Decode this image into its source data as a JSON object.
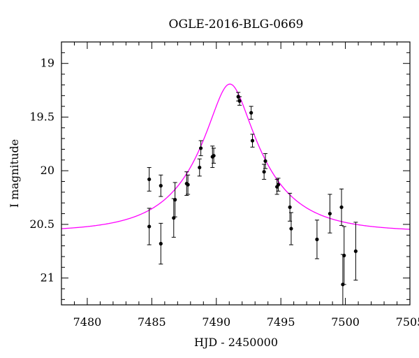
{
  "chart_data": {
    "type": "scatter",
    "title": "OGLE-2016-BLG-0669",
    "xlabel": "HJD - 2450000",
    "ylabel": "I magnitude",
    "xlim": [
      7478,
      7505
    ],
    "ylim": [
      21.25,
      18.8
    ],
    "y_inverted": true,
    "x_ticks": [
      7480,
      7485,
      7490,
      7495,
      7500,
      7505
    ],
    "y_ticks": [
      19,
      19.5,
      20,
      20.5,
      21
    ],
    "x_tick_labels": [
      "7480",
      "7485",
      "7490",
      "7495",
      "7500",
      "7505"
    ],
    "y_tick_labels": [
      "19",
      "19.5",
      "20",
      "20.5",
      "21"
    ],
    "grid": false,
    "colors": {
      "model": "#ff00ff",
      "points": "#000000"
    },
    "series": [
      {
        "type": "points_with_errors",
        "points": [
          {
            "x": 7484.8,
            "y": 20.08,
            "err": 0.11
          },
          {
            "x": 7484.8,
            "y": 20.52,
            "err": 0.17
          },
          {
            "x": 7485.7,
            "y": 20.14,
            "err": 0.1
          },
          {
            "x": 7485.7,
            "y": 20.68,
            "err": 0.19
          },
          {
            "x": 7486.7,
            "y": 20.44,
            "err": 0.18
          },
          {
            "x": 7486.8,
            "y": 20.27,
            "err": 0.16
          },
          {
            "x": 7487.7,
            "y": 20.12,
            "err": 0.11
          },
          {
            "x": 7487.8,
            "y": 20.13,
            "err": 0.09
          },
          {
            "x": 7488.7,
            "y": 19.97,
            "err": 0.08
          },
          {
            "x": 7488.8,
            "y": 19.79,
            "err": 0.07
          },
          {
            "x": 7489.7,
            "y": 19.87,
            "err": 0.1
          },
          {
            "x": 7489.8,
            "y": 19.86,
            "err": 0.07
          },
          {
            "x": 7491.7,
            "y": 19.31,
            "err": 0.04
          },
          {
            "x": 7491.8,
            "y": 19.35,
            "err": 0.04
          },
          {
            "x": 7492.7,
            "y": 19.46,
            "err": 0.06
          },
          {
            "x": 7492.8,
            "y": 19.72,
            "err": 0.06
          },
          {
            "x": 7493.7,
            "y": 20.01,
            "err": 0.07
          },
          {
            "x": 7493.8,
            "y": 19.91,
            "err": 0.07
          },
          {
            "x": 7494.7,
            "y": 20.15,
            "err": 0.07
          },
          {
            "x": 7494.8,
            "y": 20.13,
            "err": 0.06
          },
          {
            "x": 7495.7,
            "y": 20.34,
            "err": 0.13
          },
          {
            "x": 7495.8,
            "y": 20.54,
            "err": 0.15
          },
          {
            "x": 7497.8,
            "y": 20.64,
            "err": 0.18
          },
          {
            "x": 7498.8,
            "y": 20.4,
            "err": 0.18
          },
          {
            "x": 7499.7,
            "y": 20.34,
            "err": 0.17
          },
          {
            "x": 7499.8,
            "y": 21.06,
            "err": 0.28
          },
          {
            "x": 7499.9,
            "y": 20.79,
            "err": 0.27
          },
          {
            "x": 7500.8,
            "y": 20.75,
            "err": 0.27
          }
        ]
      },
      {
        "type": "model_curve",
        "baseline_mag": 20.57,
        "t0": 7491.05,
        "tE": 5.1,
        "u0": 0.29
      }
    ]
  }
}
